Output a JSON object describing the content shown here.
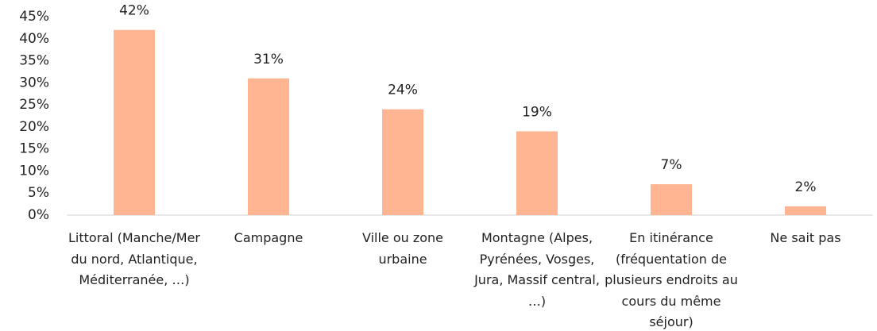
{
  "chart_data": {
    "type": "bar",
    "categories": [
      "Littoral (Manche/Mer du nord, Atlantique, Méditerranée, …)",
      "Campagne",
      "Ville ou zone urbaine",
      "Montagne (Alpes, Pyrénées, Vosges, Jura, Massif central, …)",
      "En itinérance (fréquentation de plusieurs endroits au cours du même séjour)",
      "Ne sait pas"
    ],
    "values": [
      42,
      31,
      24,
      19,
      7,
      2
    ],
    "value_labels": [
      "42%",
      "31%",
      "24%",
      "19%",
      "7%",
      "2%"
    ],
    "color": "#ffb592",
    "ylim": [
      0,
      45
    ],
    "yticks": [
      {
        "value": 0,
        "label": "0%"
      },
      {
        "value": 5,
        "label": "5%"
      },
      {
        "value": 10,
        "label": "10%"
      },
      {
        "value": 15,
        "label": "15%"
      },
      {
        "value": 20,
        "label": "20%"
      },
      {
        "value": 25,
        "label": "25%"
      },
      {
        "value": 30,
        "label": "30%"
      },
      {
        "value": 35,
        "label": "35%"
      },
      {
        "value": 40,
        "label": "40%"
      },
      {
        "value": 45,
        "label": "45%"
      }
    ],
    "grid": false
  }
}
